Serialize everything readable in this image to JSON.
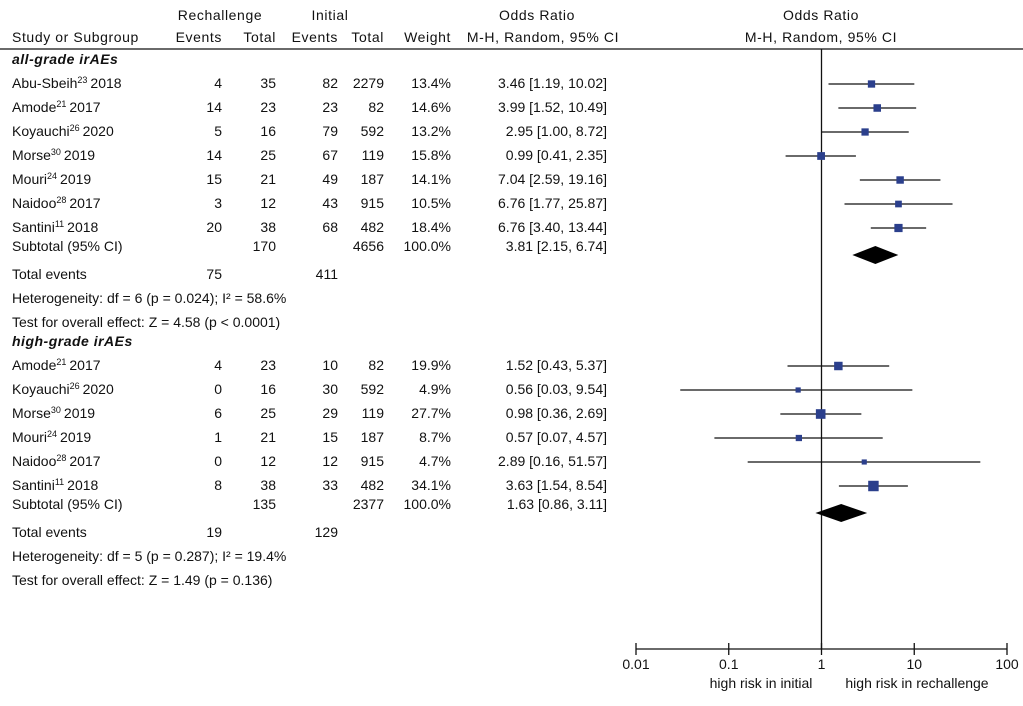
{
  "chart_data": {
    "type": "forest",
    "headers": {
      "group_rechallenge": "Rechallenge",
      "group_initial": "Initial",
      "odds_ratio_left": "Odds Ratio",
      "odds_ratio_right": "Odds Ratio",
      "study": "Study or Subgroup",
      "events_r": "Events",
      "total_r": "Total",
      "events_i": "Events",
      "total_i": "Total",
      "weight": "Weight",
      "method_left": "M-H, Random, 95% CI",
      "method_right": "M-H, Random, 95% CI"
    },
    "axis": {
      "scale": "log",
      "range": [
        0.01,
        100
      ],
      "ticks": [
        0.01,
        0.1,
        1,
        10,
        100
      ],
      "tick_labels": [
        "0.01",
        "0.1",
        "1",
        "10",
        "100"
      ],
      "label_left": "high risk in initial",
      "label_right": "high risk in rechallenge"
    },
    "groups": [
      {
        "title": "all-grade irAEs",
        "studies": [
          {
            "author": "Abu-Sbeih",
            "ref": "23",
            "year": "2018",
            "events_r": "4",
            "total_r": "35",
            "events_i": "82",
            "total_i": "2279",
            "weight": "13.4%",
            "ci_text": "3.46 [1.19, 10.02]",
            "or": 3.46,
            "lo": 1.19,
            "hi": 10.02,
            "w": 13.4
          },
          {
            "author": "Amode",
            "ref": "21",
            "year": "2017",
            "events_r": "14",
            "total_r": "23",
            "events_i": "23",
            "total_i": "82",
            "weight": "14.6%",
            "ci_text": "3.99 [1.52, 10.49]",
            "or": 3.99,
            "lo": 1.52,
            "hi": 10.49,
            "w": 14.6
          },
          {
            "author": "Koyauchi",
            "ref": "26",
            "year": "2020",
            "events_r": "5",
            "total_r": "16",
            "events_i": "79",
            "total_i": "592",
            "weight": "13.2%",
            "ci_text": "2.95 [1.00, 8.72]",
            "or": 2.95,
            "lo": 1.0,
            "hi": 8.72,
            "w": 13.2
          },
          {
            "author": "Morse",
            "ref": "30",
            "year": "2019",
            "events_r": "14",
            "total_r": "25",
            "events_i": "67",
            "total_i": "119",
            "weight": "15.8%",
            "ci_text": "0.99 [0.41, 2.35]",
            "or": 0.99,
            "lo": 0.41,
            "hi": 2.35,
            "w": 15.8
          },
          {
            "author": "Mouri",
            "ref": "24",
            "year": "2019",
            "events_r": "15",
            "total_r": "21",
            "events_i": "49",
            "total_i": "187",
            "weight": "14.1%",
            "ci_text": "7.04 [2.59, 19.16]",
            "or": 7.04,
            "lo": 2.59,
            "hi": 19.16,
            "w": 14.1
          },
          {
            "author": "Naidoo",
            "ref": "28",
            "year": "2017",
            "events_r": "3",
            "total_r": "12",
            "events_i": "43",
            "total_i": "915",
            "weight": "10.5%",
            "ci_text": "6.76 [1.77, 25.87]",
            "or": 6.76,
            "lo": 1.77,
            "hi": 25.87,
            "w": 10.5
          },
          {
            "author": "Santini",
            "ref": "11",
            "year": "2018",
            "events_r": "20",
            "total_r": "38",
            "events_i": "68",
            "total_i": "482",
            "weight": "18.4%",
            "ci_text": "6.76 [3.40, 13.44]",
            "or": 6.76,
            "lo": 3.4,
            "hi": 13.44,
            "w": 18.4
          }
        ],
        "subtotal": {
          "label": "Subtotal (95% CI)",
          "total_r": "170",
          "total_i": "4656",
          "weight": "100.0%",
          "ci_text": "3.81 [2.15, 6.74]",
          "or": 3.81,
          "lo": 2.15,
          "hi": 6.74
        },
        "total_events": {
          "label": "Total events",
          "r": "75",
          "i": "411"
        },
        "heterogeneity": "Heterogeneity:  df = 6 (p = 0.024); I² = 58.6%",
        "overall_effect": "Test for overall effect: Z = 4.58 (p < 0.0001)"
      },
      {
        "title": "high-grade irAEs",
        "studies": [
          {
            "author": "Amode",
            "ref": "21",
            "year": "2017",
            "events_r": "4",
            "total_r": "23",
            "events_i": "10",
            "total_i": "82",
            "weight": "19.9%",
            "ci_text": "1.52 [0.43, 5.37]",
            "or": 1.52,
            "lo": 0.43,
            "hi": 5.37,
            "w": 19.9
          },
          {
            "author": "Koyauchi",
            "ref": "26",
            "year": "2020",
            "events_r": "0",
            "total_r": "16",
            "events_i": "30",
            "total_i": "592",
            "weight": "4.9%",
            "ci_text": "0.56 [0.03, 9.54]",
            "or": 0.56,
            "lo": 0.03,
            "hi": 9.54,
            "w": 4.9
          },
          {
            "author": "Morse",
            "ref": "30",
            "year": "2019",
            "events_r": "6",
            "total_r": "25",
            "events_i": "29",
            "total_i": "119",
            "weight": "27.7%",
            "ci_text": "0.98 [0.36, 2.69]",
            "or": 0.98,
            "lo": 0.36,
            "hi": 2.69,
            "w": 27.7
          },
          {
            "author": "Mouri",
            "ref": "24",
            "year": "2019",
            "events_r": "1",
            "total_r": "21",
            "events_i": "15",
            "total_i": "187",
            "weight": "8.7%",
            "ci_text": "0.57 [0.07, 4.57]",
            "or": 0.57,
            "lo": 0.07,
            "hi": 4.57,
            "w": 8.7
          },
          {
            "author": "Naidoo",
            "ref": "28",
            "year": "2017",
            "events_r": "0",
            "total_r": "12",
            "events_i": "12",
            "total_i": "915",
            "weight": "4.7%",
            "ci_text": "2.89 [0.16, 51.57]",
            "or": 2.89,
            "lo": 0.16,
            "hi": 51.57,
            "w": 4.7
          },
          {
            "author": "Santini",
            "ref": "11",
            "year": "2018",
            "events_r": "8",
            "total_r": "38",
            "events_i": "33",
            "total_i": "482",
            "weight": "34.1%",
            "ci_text": "3.63 [1.54, 8.54]",
            "or": 3.63,
            "lo": 1.54,
            "hi": 8.54,
            "w": 34.1
          }
        ],
        "subtotal": {
          "label": "Subtotal (95% CI)",
          "total_r": "135",
          "total_i": "2377",
          "weight": "100.0%",
          "ci_text": "1.63 [0.86, 3.11]",
          "or": 1.63,
          "lo": 0.86,
          "hi": 3.11
        },
        "total_events": {
          "label": "Total events",
          "r": "19",
          "i": "129"
        },
        "heterogeneity": "Heterogeneity: df = 5 (p = 0.287); I² = 19.4%",
        "overall_effect": "Test for overall effect: Z = 1.49 (p = 0.136)"
      }
    ],
    "colors": {
      "marker": "#2b3f8c",
      "line": "#111111",
      "diamond": "#000000"
    }
  }
}
